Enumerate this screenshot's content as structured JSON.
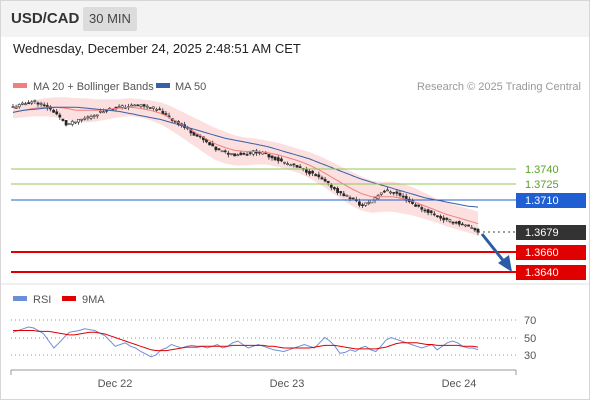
{
  "header": {
    "symbol": "USD/CAD",
    "timeframe": "30 MIN"
  },
  "datetime": "Wednesday, December 24, 2025 2:48:51 AM CET",
  "legend": {
    "ma20_label": "MA 20 + Bollinger Bands",
    "ma50_label": "MA 50",
    "credit": "Research © 2025 Trading Central"
  },
  "colors": {
    "ma20": "#f08080",
    "ma50": "#3a5fa8",
    "bollinger_fill": "#fcd9d9",
    "up_candle": "#ffffff",
    "down_candle": "#222222",
    "support": "#e00000",
    "resistance": "#8cc85a",
    "pivot": "#1f5fd1",
    "rsi": "#6b8fd6",
    "rsi_ma": "#e00000",
    "arrow": "#2a5ca8"
  },
  "chart_data": [
    {
      "type": "candlestick",
      "title": "USD/CAD",
      "timeframe": "30 MIN",
      "x_ticks": [
        "Dec 22",
        "Dec 23",
        "Dec 24"
      ],
      "levels": [
        {
          "value": 1.374,
          "label": "1.3740",
          "role": "resistance"
        },
        {
          "value": 1.3725,
          "label": "1.3725",
          "role": "resistance"
        },
        {
          "value": 1.371,
          "label": "1.3710",
          "role": "pivot"
        },
        {
          "value": 1.3679,
          "label": "1.3679",
          "role": "last"
        },
        {
          "value": 1.366,
          "label": "1.3660",
          "role": "support"
        },
        {
          "value": 1.364,
          "label": "1.3640",
          "role": "support"
        }
      ],
      "close_path": [
        1.38,
        1.3803,
        1.3806,
        1.3801,
        1.3795,
        1.3783,
        1.3786,
        1.379,
        1.3794,
        1.3798,
        1.38,
        1.3801,
        1.3802,
        1.38,
        1.3796,
        1.3788,
        1.3782,
        1.3775,
        1.3768,
        1.376,
        1.3756,
        1.3754,
        1.3755,
        1.3757,
        1.3754,
        1.3749,
        1.3745,
        1.3741,
        1.3737,
        1.3731,
        1.3724,
        1.3716,
        1.3712,
        1.3704,
        1.371,
        1.3719,
        1.3718,
        1.3712,
        1.3705,
        1.37,
        1.3695,
        1.369,
        1.3688,
        1.3684,
        1.3679
      ],
      "ma20": [
        1.3795,
        1.3797,
        1.3799,
        1.38,
        1.38,
        1.3799,
        1.3797,
        1.3797,
        1.3797,
        1.3798,
        1.3799,
        1.38,
        1.3799,
        1.3797,
        1.3794,
        1.3789,
        1.3783,
        1.3777,
        1.3771,
        1.3765,
        1.3761,
        1.3758,
        1.3757,
        1.3757,
        1.3756,
        1.3754,
        1.3751,
        1.3748,
        1.3744,
        1.3739,
        1.3733,
        1.3727,
        1.3721,
        1.3716,
        1.3713,
        1.3713,
        1.3713,
        1.3711,
        1.3708,
        1.3704,
        1.37,
        1.3696,
        1.3693,
        1.369,
        1.3687
      ],
      "ma50": [
        1.3795,
        1.3797,
        1.3798,
        1.3799,
        1.38,
        1.38,
        1.38,
        1.3799,
        1.3798,
        1.3797,
        1.3796,
        1.3794,
        1.3792,
        1.379,
        1.3788,
        1.3785,
        1.3782,
        1.3779,
        1.3776,
        1.3773,
        1.377,
        1.3768,
        1.3766,
        1.3764,
        1.3762,
        1.3759,
        1.3756,
        1.3753,
        1.375,
        1.3746,
        1.3742,
        1.3738,
        1.3734,
        1.373,
        1.3727,
        1.3724,
        1.3721,
        1.3718,
        1.3715,
        1.3712,
        1.371,
        1.3708,
        1.3706,
        1.3704,
        1.3703
      ],
      "bollinger_width": [
        6,
        7,
        8,
        9,
        10,
        11,
        12,
        12,
        11,
        10,
        9,
        9,
        9,
        10,
        11,
        12,
        13,
        14,
        15,
        16,
        16,
        15,
        14,
        13,
        12,
        12,
        12,
        12,
        13,
        14,
        15,
        16,
        17,
        17,
        16,
        15,
        15,
        15,
        14,
        13,
        12,
        12,
        12,
        12,
        12
      ]
    },
    {
      "type": "line",
      "title": "RSI",
      "legend": [
        "RSI",
        "9MA"
      ],
      "y_ticks": [
        70,
        50,
        30
      ],
      "ylim": [
        20,
        80
      ],
      "rsi": [
        56,
        58,
        60,
        62,
        61,
        58,
        54,
        46,
        38,
        44,
        50,
        56,
        57,
        58,
        60,
        59,
        58,
        55,
        52,
        46,
        40,
        42,
        44,
        40,
        38,
        34,
        31,
        28,
        30,
        36,
        38,
        42,
        40,
        38,
        40,
        41,
        40,
        40,
        38,
        40,
        42,
        38,
        40,
        44,
        46,
        42,
        38,
        40,
        42,
        40,
        38,
        36,
        35,
        34,
        36,
        38,
        40,
        42,
        40,
        38,
        44,
        50,
        46,
        40,
        32,
        33,
        36,
        34,
        38,
        40,
        36,
        34,
        40,
        47,
        50,
        48,
        46,
        44,
        42,
        40,
        38,
        40,
        42,
        36,
        40,
        44,
        46,
        44,
        40,
        38,
        38,
        36
      ],
      "rsi_ma": [
        58,
        58,
        58,
        58,
        58,
        57,
        57,
        57,
        56,
        55,
        54,
        53,
        53,
        54,
        55,
        56,
        56,
        55,
        54,
        52,
        50,
        48,
        46,
        44,
        42,
        40,
        38,
        36,
        35,
        35,
        35,
        36,
        37,
        38,
        39,
        39,
        39,
        40,
        40,
        40,
        40,
        40,
        40,
        41,
        41,
        41,
        41,
        41,
        41,
        41,
        40,
        40,
        39,
        38,
        38,
        38,
        38,
        38,
        38,
        39,
        40,
        41,
        41,
        41,
        40,
        39,
        38,
        37,
        37,
        37,
        37,
        37,
        38,
        39,
        41,
        43,
        44,
        44,
        44,
        44,
        43,
        42,
        42,
        41,
        41,
        41,
        41,
        41,
        40,
        40,
        40,
        39
      ]
    }
  ]
}
